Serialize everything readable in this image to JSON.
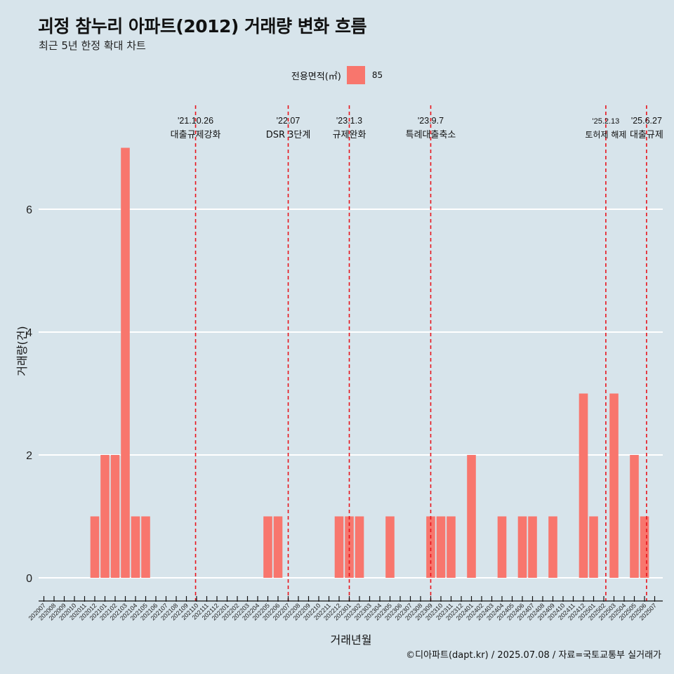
{
  "header": {
    "title": "괴정 참누리 아파트(2012) 거래량 변화 흐름",
    "subtitle": "최근 5년 한정 확대 차트"
  },
  "legend": {
    "title": "전용면적(㎡)",
    "value": "85",
    "color": "#f8766d"
  },
  "caption": "©디아파트(dapt.kr) / 2025.07.08 / 자료=국토교통부 실거래가",
  "colors": {
    "background": "#d7e4eb",
    "bar": "#f8766d",
    "event_line": "#e8141c",
    "grid": "#ffffff"
  },
  "chart_data": {
    "type": "bar",
    "title": "괴정 참누리 아파트(2012) 거래량 변화 흐름",
    "subtitle": "최근 5년 한정 확대 차트",
    "xlabel": "거래년월",
    "ylabel": "거래량(건)",
    "ylim": [
      0,
      7
    ],
    "yticks": [
      0,
      2,
      4,
      6
    ],
    "grid": true,
    "legend_position": "top",
    "categories": [
      "202007",
      "202008",
      "202009",
      "202010",
      "202011",
      "202012",
      "202101",
      "202102",
      "202103",
      "202104",
      "202105",
      "202106",
      "202107",
      "202108",
      "202109",
      "202110",
      "202111",
      "202112",
      "202201",
      "202202",
      "202203",
      "202204",
      "202205",
      "202206",
      "202207",
      "202208",
      "202209",
      "202210",
      "202211",
      "202212",
      "202301",
      "202302",
      "202303",
      "202304",
      "202305",
      "202306",
      "202307",
      "202308",
      "202309",
      "202310",
      "202311",
      "202312",
      "202401",
      "202402",
      "202403",
      "202404",
      "202405",
      "202406",
      "202407",
      "202408",
      "202409",
      "202410",
      "202411",
      "202412",
      "202501",
      "202502",
      "202503",
      "202504",
      "202505",
      "202506",
      "202507"
    ],
    "series": [
      {
        "name": "85",
        "values": [
          0,
          0,
          0,
          0,
          0,
          1,
          2,
          2,
          7,
          1,
          1,
          0,
          0,
          0,
          0,
          0,
          0,
          0,
          0,
          0,
          0,
          0,
          1,
          1,
          0,
          0,
          0,
          0,
          0,
          1,
          1,
          1,
          0,
          0,
          1,
          0,
          0,
          0,
          1,
          1,
          1,
          0,
          2,
          0,
          0,
          1,
          0,
          1,
          1,
          0,
          1,
          0,
          0,
          3,
          1,
          0,
          3,
          0,
          2,
          1,
          0
        ]
      }
    ],
    "annotations": [
      {
        "date": "'21.10.26",
        "label": "대출규제강화",
        "position": 14.9
      },
      {
        "date": "'22.07",
        "label": "DSR 3단계",
        "position": 24.0
      },
      {
        "date": "'23.1.3",
        "label": "규제완화",
        "position": 30.0
      },
      {
        "date": "'23.9.7",
        "label": "특례대출축소",
        "position": 38.0
      },
      {
        "date": "'25.2.13",
        "label": "토허제 해제",
        "position": 55.2
      },
      {
        "date": "'25.6.27",
        "label": "대출규제",
        "position": 59.2
      }
    ]
  }
}
